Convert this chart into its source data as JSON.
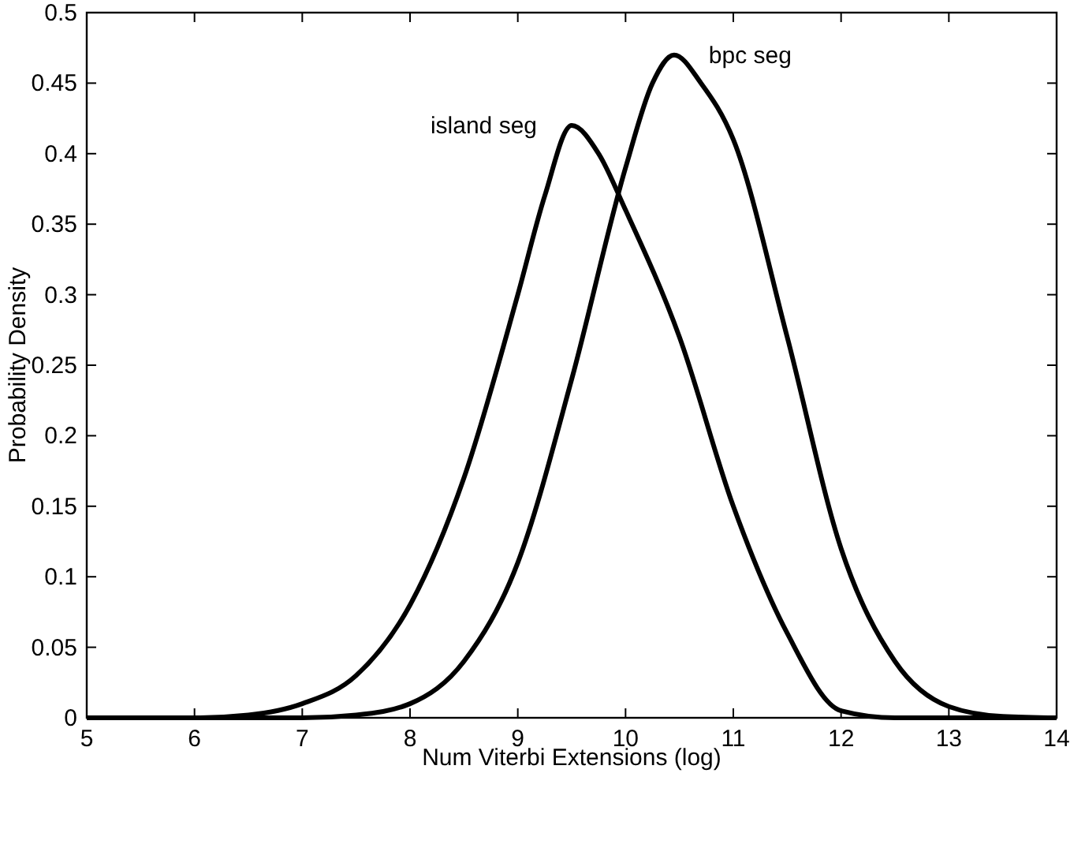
{
  "chart_data": {
    "type": "line",
    "xlabel": "Num Viterbi Extensions (log)",
    "ylabel": "Probability Density",
    "xlim": [
      5,
      14
    ],
    "xticks": [
      5,
      6,
      7,
      8,
      9,
      10,
      11,
      12,
      13,
      14
    ],
    "ylim": [
      0,
      0.5
    ],
    "yticks": [
      0,
      0.05,
      0.1,
      0.15,
      0.2,
      0.25,
      0.3,
      0.35,
      0.4,
      0.45,
      0.5
    ],
    "grid": false,
    "marker": "none",
    "line_style": "solid",
    "series": [
      {
        "name": "island seg",
        "color": "#000000",
        "x": [
          5,
          6,
          6.5,
          7,
          7.5,
          8,
          8.5,
          9,
          9.25,
          9.5,
          9.75,
          10,
          10.5,
          11,
          11.5,
          12,
          12.5,
          14
        ],
        "values": [
          0,
          0,
          0.002,
          0.01,
          0.03,
          0.08,
          0.17,
          0.3,
          0.37,
          0.42,
          0.4,
          0.36,
          0.27,
          0.15,
          0.06,
          0.005,
          0,
          0
        ]
      },
      {
        "name": "bpc seg",
        "color": "#000000",
        "x": [
          5,
          7,
          7.5,
          8,
          8.5,
          9,
          9.5,
          10,
          10.25,
          10.45,
          10.7,
          11,
          11.5,
          12,
          12.5,
          13,
          13.5,
          14
        ],
        "values": [
          0,
          0,
          0.002,
          0.01,
          0.04,
          0.11,
          0.24,
          0.39,
          0.45,
          0.47,
          0.45,
          0.41,
          0.27,
          0.12,
          0.04,
          0.008,
          0.001,
          0
        ]
      }
    ]
  }
}
